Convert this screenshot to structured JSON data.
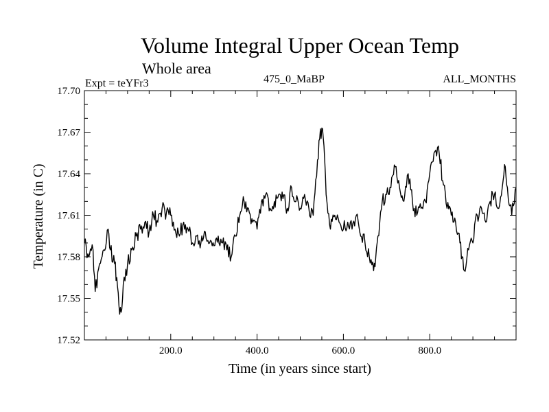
{
  "chart_data": {
    "type": "line",
    "title": "Volume Integral Upper Ocean Temp",
    "subtitle": "Whole area",
    "annotations": {
      "expt": "Expt = teYFr3",
      "period": "475_0_MaBP",
      "months": "ALL_MONTHS"
    },
    "xlabel": "Time (in years since start)",
    "ylabel": "Temperature (in C)",
    "xlim": [
      0,
      1000
    ],
    "ylim": [
      17.52,
      17.7
    ],
    "x_ticks": [
      200,
      400,
      600,
      800
    ],
    "x_tick_labels": [
      "200.0",
      "400.0",
      "600.0",
      "800.0"
    ],
    "y_ticks": [
      17.52,
      17.55,
      17.58,
      17.61,
      17.64,
      17.67,
      17.7
    ],
    "y_tick_labels": [
      "17.52",
      "17.55",
      "17.58",
      "17.61",
      "17.64",
      "17.67",
      "17.70"
    ],
    "grid": false,
    "series": [
      {
        "name": "Volume integral upper ocean temperature",
        "x": [
          0,
          10,
          20,
          25,
          35,
          45,
          55,
          60,
          70,
          75,
          80,
          85,
          90,
          100,
          110,
          120,
          130,
          140,
          150,
          160,
          170,
          180,
          190,
          200,
          210,
          220,
          230,
          240,
          250,
          260,
          270,
          280,
          290,
          300,
          310,
          320,
          330,
          340,
          350,
          360,
          370,
          380,
          390,
          400,
          410,
          420,
          430,
          440,
          450,
          460,
          470,
          480,
          490,
          500,
          510,
          520,
          530,
          540,
          545,
          550,
          555,
          560,
          570,
          580,
          590,
          600,
          610,
          620,
          630,
          640,
          650,
          660,
          670,
          675,
          680,
          690,
          700,
          710,
          720,
          730,
          740,
          750,
          760,
          770,
          780,
          790,
          800,
          810,
          820,
          830,
          840,
          850,
          860,
          870,
          875,
          880,
          890,
          900,
          910,
          920,
          930,
          940,
          950,
          960,
          970,
          975,
          980,
          990,
          1000
        ],
        "y": [
          17.59,
          17.58,
          17.585,
          17.555,
          17.575,
          17.585,
          17.6,
          17.585,
          17.575,
          17.565,
          17.545,
          17.54,
          17.56,
          17.575,
          17.585,
          17.595,
          17.6,
          17.605,
          17.598,
          17.61,
          17.605,
          17.615,
          17.612,
          17.61,
          17.6,
          17.595,
          17.605,
          17.6,
          17.59,
          17.595,
          17.59,
          17.598,
          17.59,
          17.588,
          17.595,
          17.59,
          17.585,
          17.58,
          17.595,
          17.61,
          17.62,
          17.615,
          17.605,
          17.6,
          17.62,
          17.625,
          17.615,
          17.62,
          17.625,
          17.622,
          17.615,
          17.63,
          17.62,
          17.615,
          17.625,
          17.615,
          17.61,
          17.65,
          17.665,
          17.673,
          17.66,
          17.625,
          17.6,
          17.61,
          17.605,
          17.6,
          17.605,
          17.6,
          17.61,
          17.595,
          17.59,
          17.58,
          17.57,
          17.58,
          17.595,
          17.62,
          17.625,
          17.63,
          17.645,
          17.63,
          17.62,
          17.64,
          17.62,
          17.61,
          17.615,
          17.62,
          17.64,
          17.655,
          17.66,
          17.635,
          17.615,
          17.61,
          17.605,
          17.59,
          17.58,
          17.57,
          17.585,
          17.59,
          17.61,
          17.615,
          17.605,
          17.62,
          17.625,
          17.615,
          17.635,
          17.645,
          17.63,
          17.61,
          17.63
        ]
      }
    ]
  }
}
